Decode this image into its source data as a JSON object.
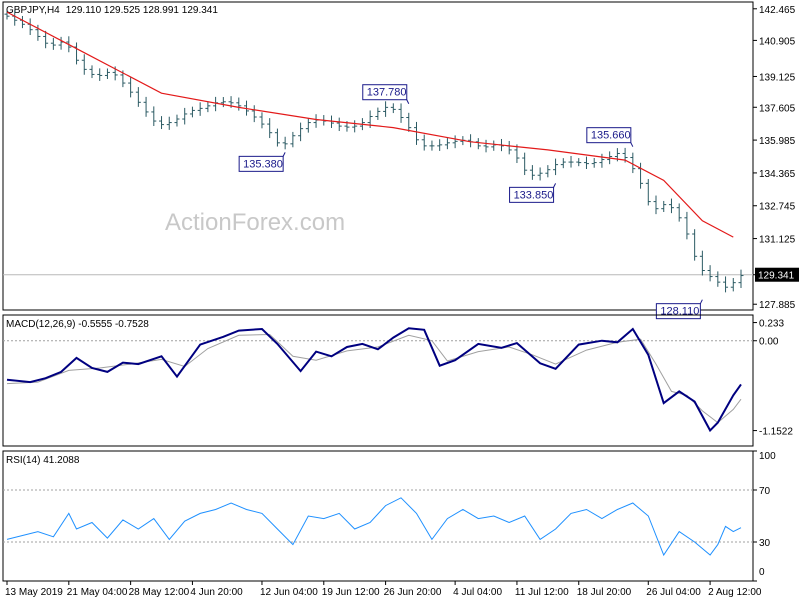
{
  "header": {
    "symbol": "GBPJPY,H4",
    "ohlc": "129.110 129.525 128.991 129.341",
    "macd_label": "MACD(12,26,9) -0.5555 -0.7528",
    "rsi_label": "RSI(14) 41.2088"
  },
  "watermark": "ActionForex.com",
  "colors": {
    "candle": "#2b5a63",
    "ma": "#e31a1a",
    "macd_line": "#000080",
    "macd_signal": "#a0a0a0",
    "rsi_line": "#1e90ff",
    "level_line": "#a0a0a0",
    "annotation": "#1a1a8a"
  },
  "chart_data": [
    {
      "type": "candlestick",
      "name": "price",
      "y_ticks": [
        "142.465",
        "140.905",
        "139.125",
        "137.605",
        "135.985",
        "134.365",
        "132.745",
        "131.125",
        "129.341",
        "127.885"
      ],
      "ylim": [
        127.6,
        142.8
      ],
      "current_price": 129.341,
      "anchors": [
        {
          "t": 0,
          "v": 142.2
        },
        {
          "t": 3,
          "v": 141.6
        },
        {
          "t": 6,
          "v": 140.6
        },
        {
          "t": 8,
          "v": 140.9
        },
        {
          "t": 10,
          "v": 139.6
        },
        {
          "t": 12,
          "v": 139.1
        },
        {
          "t": 14,
          "v": 139.4
        },
        {
          "t": 16,
          "v": 138.6
        },
        {
          "t": 18,
          "v": 137.6
        },
        {
          "t": 20,
          "v": 136.7
        },
        {
          "t": 22,
          "v": 136.9
        },
        {
          "t": 24,
          "v": 137.4
        },
        {
          "t": 26,
          "v": 137.6
        },
        {
          "t": 28,
          "v": 137.9
        },
        {
          "t": 30,
          "v": 137.8
        },
        {
          "t": 32,
          "v": 137.3
        },
        {
          "t": 34,
          "v": 136.6
        },
        {
          "t": 36,
          "v": 135.6
        },
        {
          "t": 38,
          "v": 136.4
        },
        {
          "t": 40,
          "v": 137.0
        },
        {
          "t": 42,
          "v": 136.9
        },
        {
          "t": 44,
          "v": 136.6
        },
        {
          "t": 46,
          "v": 136.7
        },
        {
          "t": 48,
          "v": 137.3
        },
        {
          "t": 50,
          "v": 137.7
        },
        {
          "t": 52,
          "v": 136.9
        },
        {
          "t": 54,
          "v": 135.7
        },
        {
          "t": 56,
          "v": 135.7
        },
        {
          "t": 58,
          "v": 135.9
        },
        {
          "t": 60,
          "v": 136.0
        },
        {
          "t": 62,
          "v": 135.6
        },
        {
          "t": 64,
          "v": 135.8
        },
        {
          "t": 66,
          "v": 135.4
        },
        {
          "t": 68,
          "v": 134.2
        },
        {
          "t": 70,
          "v": 134.4
        },
        {
          "t": 72,
          "v": 134.9
        },
        {
          "t": 74,
          "v": 134.9
        },
        {
          "t": 76,
          "v": 134.8
        },
        {
          "t": 78,
          "v": 135.1
        },
        {
          "t": 80,
          "v": 135.4
        },
        {
          "t": 82,
          "v": 134.3
        },
        {
          "t": 84,
          "v": 132.5
        },
        {
          "t": 86,
          "v": 132.9
        },
        {
          "t": 88,
          "v": 131.9
        },
        {
          "t": 90,
          "v": 129.7
        },
        {
          "t": 92,
          "v": 129.1
        },
        {
          "t": 94,
          "v": 128.6
        },
        {
          "t": 95,
          "v": 129.3
        }
      ],
      "moving_average": [
        {
          "t": 0,
          "v": 142.3
        },
        {
          "t": 10,
          "v": 140.3
        },
        {
          "t": 20,
          "v": 138.3
        },
        {
          "t": 30,
          "v": 137.6
        },
        {
          "t": 40,
          "v": 137.0
        },
        {
          "t": 50,
          "v": 136.6
        },
        {
          "t": 60,
          "v": 135.9
        },
        {
          "t": 70,
          "v": 135.5
        },
        {
          "t": 80,
          "v": 135.0
        },
        {
          "t": 85,
          "v": 134.0
        },
        {
          "t": 90,
          "v": 132.0
        },
        {
          "t": 94,
          "v": 131.2
        }
      ],
      "annotations": [
        {
          "label": "135.380",
          "t": 36,
          "v": 135.38,
          "side": "left",
          "pos": "below"
        },
        {
          "label": "137.780",
          "t": 52,
          "v": 137.78,
          "side": "left",
          "pos": "above"
        },
        {
          "label": "133.850",
          "t": 71,
          "v": 133.85,
          "side": "left",
          "pos": "below"
        },
        {
          "label": "135.660",
          "t": 81,
          "v": 135.66,
          "side": "left",
          "pos": "above"
        },
        {
          "label": "128.110",
          "t": 90,
          "v": 128.11,
          "side": "left",
          "pos": "below"
        }
      ]
    },
    {
      "type": "line",
      "name": "MACD(12,26,9)",
      "y_ticks": [
        "0.233",
        "0.00",
        "-1.1522"
      ],
      "ylim": [
        -1.35,
        0.33
      ],
      "macd": [
        {
          "t": 0,
          "v": -0.5
        },
        {
          "t": 3,
          "v": -0.53
        },
        {
          "t": 5,
          "v": -0.48
        },
        {
          "t": 7,
          "v": -0.4
        },
        {
          "t": 9,
          "v": -0.22
        },
        {
          "t": 11,
          "v": -0.35
        },
        {
          "t": 13,
          "v": -0.4
        },
        {
          "t": 15,
          "v": -0.28
        },
        {
          "t": 17,
          "v": -0.3
        },
        {
          "t": 20,
          "v": -0.2
        },
        {
          "t": 22,
          "v": -0.46
        },
        {
          "t": 25,
          "v": -0.05
        },
        {
          "t": 28,
          "v": 0.05
        },
        {
          "t": 30,
          "v": 0.13
        },
        {
          "t": 33,
          "v": 0.15
        },
        {
          "t": 35,
          "v": -0.04
        },
        {
          "t": 38,
          "v": -0.39
        },
        {
          "t": 40,
          "v": -0.14
        },
        {
          "t": 42,
          "v": -0.2
        },
        {
          "t": 44,
          "v": -0.08
        },
        {
          "t": 46,
          "v": -0.04
        },
        {
          "t": 48,
          "v": -0.11
        },
        {
          "t": 50,
          "v": 0.04
        },
        {
          "t": 52,
          "v": 0.16
        },
        {
          "t": 54,
          "v": 0.14
        },
        {
          "t": 56,
          "v": -0.32
        },
        {
          "t": 58,
          "v": -0.25
        },
        {
          "t": 61,
          "v": -0.04
        },
        {
          "t": 64,
          "v": -0.09
        },
        {
          "t": 66,
          "v": -0.03
        },
        {
          "t": 69,
          "v": -0.29
        },
        {
          "t": 71,
          "v": -0.36
        },
        {
          "t": 74,
          "v": -0.05
        },
        {
          "t": 77,
          "v": 0.0
        },
        {
          "t": 79,
          "v": -0.02
        },
        {
          "t": 81,
          "v": 0.15
        },
        {
          "t": 83,
          "v": -0.18
        },
        {
          "t": 85,
          "v": -0.8
        },
        {
          "t": 87,
          "v": -0.65
        },
        {
          "t": 89,
          "v": -0.78
        },
        {
          "t": 91,
          "v": -1.15
        },
        {
          "t": 92,
          "v": -1.05
        },
        {
          "t": 94,
          "v": -0.7
        },
        {
          "t": 95,
          "v": -0.56
        }
      ],
      "signal": [
        {
          "t": 0,
          "v": -0.55
        },
        {
          "t": 4,
          "v": -0.53
        },
        {
          "t": 8,
          "v": -0.38
        },
        {
          "t": 12,
          "v": -0.35
        },
        {
          "t": 16,
          "v": -0.3
        },
        {
          "t": 20,
          "v": -0.24
        },
        {
          "t": 23,
          "v": -0.33
        },
        {
          "t": 26,
          "v": -0.1
        },
        {
          "t": 30,
          "v": 0.07
        },
        {
          "t": 34,
          "v": 0.08
        },
        {
          "t": 37,
          "v": -0.2
        },
        {
          "t": 40,
          "v": -0.25
        },
        {
          "t": 44,
          "v": -0.13
        },
        {
          "t": 48,
          "v": -0.08
        },
        {
          "t": 52,
          "v": 0.07
        },
        {
          "t": 55,
          "v": 0.0
        },
        {
          "t": 57,
          "v": -0.26
        },
        {
          "t": 61,
          "v": -0.14
        },
        {
          "t": 65,
          "v": -0.08
        },
        {
          "t": 68,
          "v": -0.18
        },
        {
          "t": 71,
          "v": -0.3
        },
        {
          "t": 75,
          "v": -0.12
        },
        {
          "t": 79,
          "v": -0.02
        },
        {
          "t": 82,
          "v": 0.02
        },
        {
          "t": 84,
          "v": -0.3
        },
        {
          "t": 86,
          "v": -0.65
        },
        {
          "t": 88,
          "v": -0.7
        },
        {
          "t": 90,
          "v": -0.9
        },
        {
          "t": 92,
          "v": -1.05
        },
        {
          "t": 94,
          "v": -0.88
        },
        {
          "t": 95,
          "v": -0.75
        }
      ]
    },
    {
      "type": "line",
      "name": "RSI(14)",
      "y_ticks": [
        "100",
        "70",
        "30",
        "0"
      ],
      "ylim": [
        0,
        100
      ],
      "levels": [
        70,
        30
      ],
      "values": [
        {
          "t": 0,
          "v": 32
        },
        {
          "t": 2,
          "v": 35
        },
        {
          "t": 4,
          "v": 38
        },
        {
          "t": 6,
          "v": 34
        },
        {
          "t": 8,
          "v": 52
        },
        {
          "t": 9,
          "v": 40
        },
        {
          "t": 11,
          "v": 45
        },
        {
          "t": 13,
          "v": 33
        },
        {
          "t": 15,
          "v": 47
        },
        {
          "t": 17,
          "v": 40
        },
        {
          "t": 19,
          "v": 48
        },
        {
          "t": 21,
          "v": 32
        },
        {
          "t": 23,
          "v": 46
        },
        {
          "t": 25,
          "v": 52
        },
        {
          "t": 27,
          "v": 55
        },
        {
          "t": 29,
          "v": 60
        },
        {
          "t": 31,
          "v": 55
        },
        {
          "t": 33,
          "v": 52
        },
        {
          "t": 35,
          "v": 40
        },
        {
          "t": 37,
          "v": 28
        },
        {
          "t": 39,
          "v": 50
        },
        {
          "t": 41,
          "v": 48
        },
        {
          "t": 43,
          "v": 52
        },
        {
          "t": 45,
          "v": 40
        },
        {
          "t": 47,
          "v": 45
        },
        {
          "t": 49,
          "v": 58
        },
        {
          "t": 51,
          "v": 64
        },
        {
          "t": 53,
          "v": 52
        },
        {
          "t": 55,
          "v": 32
        },
        {
          "t": 57,
          "v": 48
        },
        {
          "t": 59,
          "v": 55
        },
        {
          "t": 61,
          "v": 48
        },
        {
          "t": 63,
          "v": 50
        },
        {
          "t": 65,
          "v": 45
        },
        {
          "t": 67,
          "v": 50
        },
        {
          "t": 69,
          "v": 32
        },
        {
          "t": 71,
          "v": 40
        },
        {
          "t": 73,
          "v": 52
        },
        {
          "t": 75,
          "v": 55
        },
        {
          "t": 77,
          "v": 48
        },
        {
          "t": 79,
          "v": 55
        },
        {
          "t": 81,
          "v": 60
        },
        {
          "t": 83,
          "v": 50
        },
        {
          "t": 85,
          "v": 20
        },
        {
          "t": 87,
          "v": 38
        },
        {
          "t": 89,
          "v": 30
        },
        {
          "t": 91,
          "v": 20
        },
        {
          "t": 92,
          "v": 28
        },
        {
          "t": 93,
          "v": 42
        },
        {
          "t": 94,
          "v": 38
        },
        {
          "t": 95,
          "v": 41
        }
      ]
    }
  ],
  "x_axis": {
    "count": 96,
    "labels": [
      {
        "t": 0,
        "label": "13 May 2019"
      },
      {
        "t": 8,
        "label": "21 May 04:00"
      },
      {
        "t": 16,
        "label": "28 May 12:00"
      },
      {
        "t": 24,
        "label": "4 Jun 20:00"
      },
      {
        "t": 33,
        "label": "12 Jun 04:00"
      },
      {
        "t": 41,
        "label": "19 Jun 12:00"
      },
      {
        "t": 49,
        "label": "26 Jun 20:00"
      },
      {
        "t": 58,
        "label": "4 Jul 04:00"
      },
      {
        "t": 66,
        "label": "11 Jul 12:00"
      },
      {
        "t": 74,
        "label": "18 Jul 20:00"
      },
      {
        "t": 83,
        "label": "26 Jul 04:00"
      },
      {
        "t": 91,
        "label": "2 Aug 12:00"
      }
    ]
  }
}
